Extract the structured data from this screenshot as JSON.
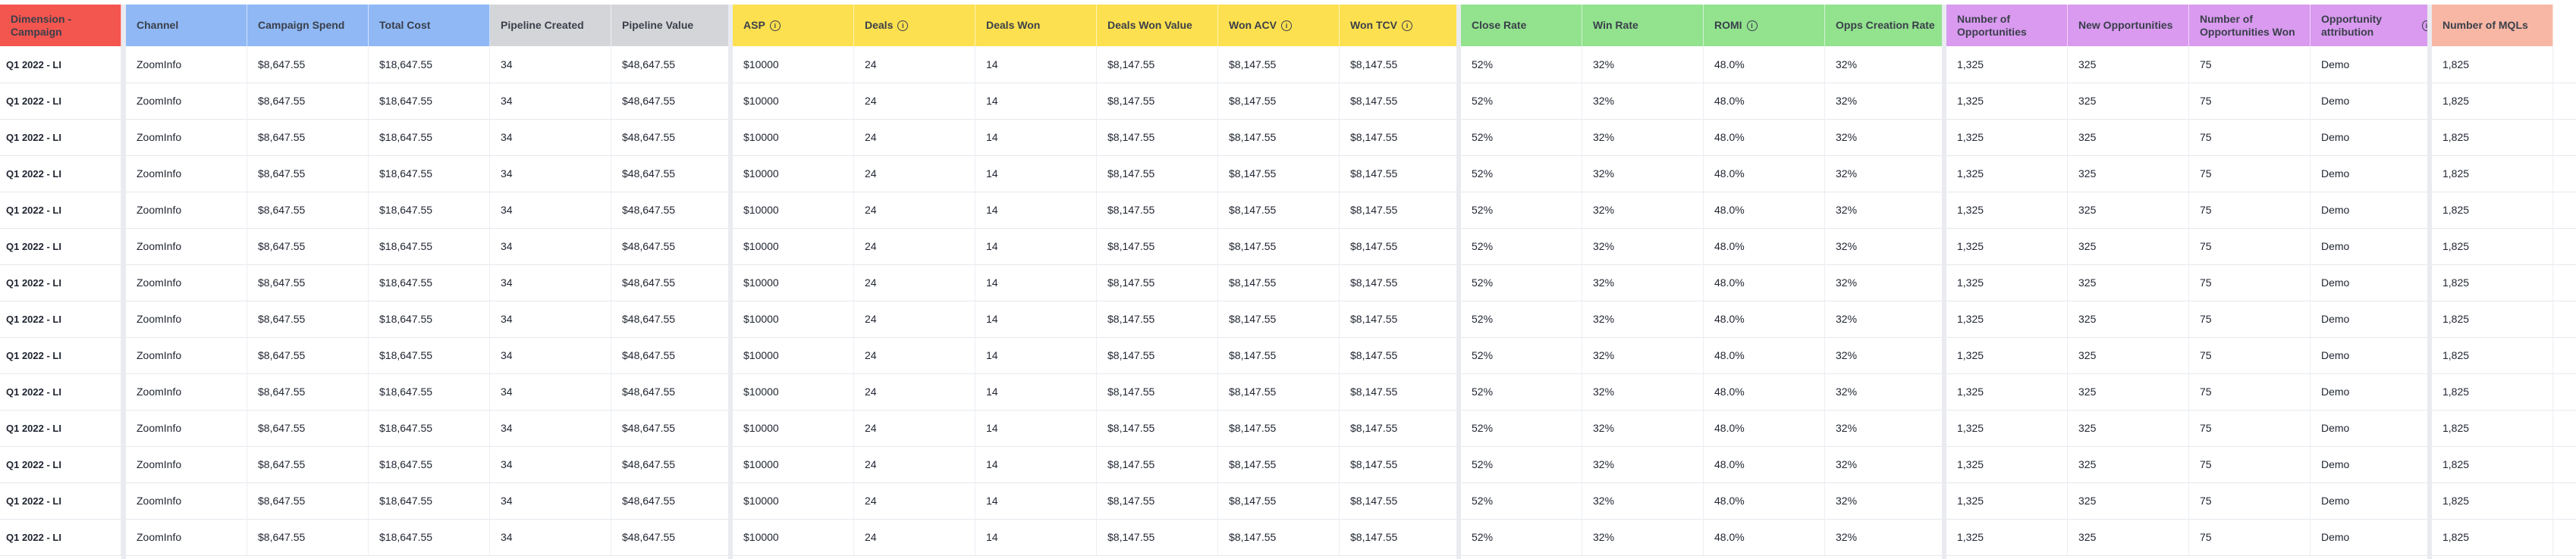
{
  "colors": {
    "red": "#f3564f",
    "blue": "#8fb8f5",
    "gray": "#d4d5d8",
    "yellow": "#fde04f",
    "green": "#92e28e",
    "purple": "#d99af0",
    "salmon": "#f8b7a4"
  },
  "headers": [
    {
      "label": "Dimension - Campaign",
      "color": "red",
      "info": false
    },
    {
      "label": "Channel",
      "color": "blue",
      "info": false
    },
    {
      "label": "Campaign Spend",
      "color": "blue",
      "info": false
    },
    {
      "label": "Total Cost",
      "color": "blue",
      "info": false
    },
    {
      "label": "Pipeline Created",
      "color": "gray",
      "info": false
    },
    {
      "label": "Pipeline Value",
      "color": "gray",
      "info": false
    },
    {
      "label": "ASP",
      "color": "yellow",
      "info": true
    },
    {
      "label": "Deals",
      "color": "yellow",
      "info": true
    },
    {
      "label": "Deals Won",
      "color": "yellow",
      "info": false
    },
    {
      "label": "Deals Won Value",
      "color": "yellow",
      "info": false
    },
    {
      "label": "Won ACV",
      "color": "yellow",
      "info": true
    },
    {
      "label": "Won TCV",
      "color": "yellow",
      "info": true
    },
    {
      "label": "Close Rate",
      "color": "green",
      "info": false
    },
    {
      "label": "Win Rate",
      "color": "green",
      "info": false
    },
    {
      "label": "ROMI",
      "color": "green",
      "info": true
    },
    {
      "label": "Opps Creation Rate",
      "color": "green",
      "info": false
    },
    {
      "label": "Number of Opportunities",
      "color": "purple",
      "info": false
    },
    {
      "label": "New Opportunities",
      "color": "purple",
      "info": false
    },
    {
      "label": "Number of Opportunities Won",
      "color": "purple",
      "info": false
    },
    {
      "label": "Opportunity attribution",
      "color": "purple",
      "info": true
    },
    {
      "label": "Number of MQLs",
      "color": "salmon",
      "info": false
    }
  ],
  "rows": [
    [
      "Q1 2022 - LI",
      "ZoomInfo",
      "$8,647.55",
      "$18,647.55",
      "34",
      "$48,647.55",
      "$10000",
      "24",
      "14",
      "$8,147.55",
      "$8,147.55",
      "$8,147.55",
      "52%",
      "32%",
      "48.0%",
      "32%",
      "1,325",
      "325",
      "75",
      "Demo",
      "1,825"
    ],
    [
      "Q1 2022 - LI",
      "ZoomInfo",
      "$8,647.55",
      "$18,647.55",
      "34",
      "$48,647.55",
      "$10000",
      "24",
      "14",
      "$8,147.55",
      "$8,147.55",
      "$8,147.55",
      "52%",
      "32%",
      "48.0%",
      "32%",
      "1,325",
      "325",
      "75",
      "Demo",
      "1,825"
    ],
    [
      "Q1 2022 - LI",
      "ZoomInfo",
      "$8,647.55",
      "$18,647.55",
      "34",
      "$48,647.55",
      "$10000",
      "24",
      "14",
      "$8,147.55",
      "$8,147.55",
      "$8,147.55",
      "52%",
      "32%",
      "48.0%",
      "32%",
      "1,325",
      "325",
      "75",
      "Demo",
      "1,825"
    ],
    [
      "Q1 2022 - LI",
      "ZoomInfo",
      "$8,647.55",
      "$18,647.55",
      "34",
      "$48,647.55",
      "$10000",
      "24",
      "14",
      "$8,147.55",
      "$8,147.55",
      "$8,147.55",
      "52%",
      "32%",
      "48.0%",
      "32%",
      "1,325",
      "325",
      "75",
      "Demo",
      "1,825"
    ],
    [
      "Q1 2022 - LI",
      "ZoomInfo",
      "$8,647.55",
      "$18,647.55",
      "34",
      "$48,647.55",
      "$10000",
      "24",
      "14",
      "$8,147.55",
      "$8,147.55",
      "$8,147.55",
      "52%",
      "32%",
      "48.0%",
      "32%",
      "1,325",
      "325",
      "75",
      "Demo",
      "1,825"
    ],
    [
      "Q1 2022 - LI",
      "ZoomInfo",
      "$8,647.55",
      "$18,647.55",
      "34",
      "$48,647.55",
      "$10000",
      "24",
      "14",
      "$8,147.55",
      "$8,147.55",
      "$8,147.55",
      "52%",
      "32%",
      "48.0%",
      "32%",
      "1,325",
      "325",
      "75",
      "Demo",
      "1,825"
    ],
    [
      "Q1 2022 - LI",
      "ZoomInfo",
      "$8,647.55",
      "$18,647.55",
      "34",
      "$48,647.55",
      "$10000",
      "24",
      "14",
      "$8,147.55",
      "$8,147.55",
      "$8,147.55",
      "52%",
      "32%",
      "48.0%",
      "32%",
      "1,325",
      "325",
      "75",
      "Demo",
      "1,825"
    ],
    [
      "Q1 2022 - LI",
      "ZoomInfo",
      "$8,647.55",
      "$18,647.55",
      "34",
      "$48,647.55",
      "$10000",
      "24",
      "14",
      "$8,147.55",
      "$8,147.55",
      "$8,147.55",
      "52%",
      "32%",
      "48.0%",
      "32%",
      "1,325",
      "325",
      "75",
      "Demo",
      "1,825"
    ],
    [
      "Q1 2022 - LI",
      "ZoomInfo",
      "$8,647.55",
      "$18,647.55",
      "34",
      "$48,647.55",
      "$10000",
      "24",
      "14",
      "$8,147.55",
      "$8,147.55",
      "$8,147.55",
      "52%",
      "32%",
      "48.0%",
      "32%",
      "1,325",
      "325",
      "75",
      "Demo",
      "1,825"
    ],
    [
      "Q1 2022 - LI",
      "ZoomInfo",
      "$8,647.55",
      "$18,647.55",
      "34",
      "$48,647.55",
      "$10000",
      "24",
      "14",
      "$8,147.55",
      "$8,147.55",
      "$8,147.55",
      "52%",
      "32%",
      "48.0%",
      "32%",
      "1,325",
      "325",
      "75",
      "Demo",
      "1,825"
    ],
    [
      "Q1 2022 - LI",
      "ZoomInfo",
      "$8,647.55",
      "$18,647.55",
      "34",
      "$48,647.55",
      "$10000",
      "24",
      "14",
      "$8,147.55",
      "$8,147.55",
      "$8,147.55",
      "52%",
      "32%",
      "48.0%",
      "32%",
      "1,325",
      "325",
      "75",
      "Demo",
      "1,825"
    ],
    [
      "Q1 2022 - LI",
      "ZoomInfo",
      "$8,647.55",
      "$18,647.55",
      "34",
      "$48,647.55",
      "$10000",
      "24",
      "14",
      "$8,147.55",
      "$8,147.55",
      "$8,147.55",
      "52%",
      "32%",
      "48.0%",
      "32%",
      "1,325",
      "325",
      "75",
      "Demo",
      "1,825"
    ],
    [
      "Q1 2022 - LI",
      "ZoomInfo",
      "$8,647.55",
      "$18,647.55",
      "34",
      "$48,647.55",
      "$10000",
      "24",
      "14",
      "$8,147.55",
      "$8,147.55",
      "$8,147.55",
      "52%",
      "32%",
      "48.0%",
      "32%",
      "1,325",
      "325",
      "75",
      "Demo",
      "1,825"
    ],
    [
      "Q1 2022 - LI",
      "ZoomInfo",
      "$8,647.55",
      "$18,647.55",
      "34",
      "$48,647.55",
      "$10000",
      "24",
      "14",
      "$8,147.55",
      "$8,147.55",
      "$8,147.55",
      "52%",
      "32%",
      "48.0%",
      "32%",
      "1,325",
      "325",
      "75",
      "Demo",
      "1,825"
    ]
  ]
}
